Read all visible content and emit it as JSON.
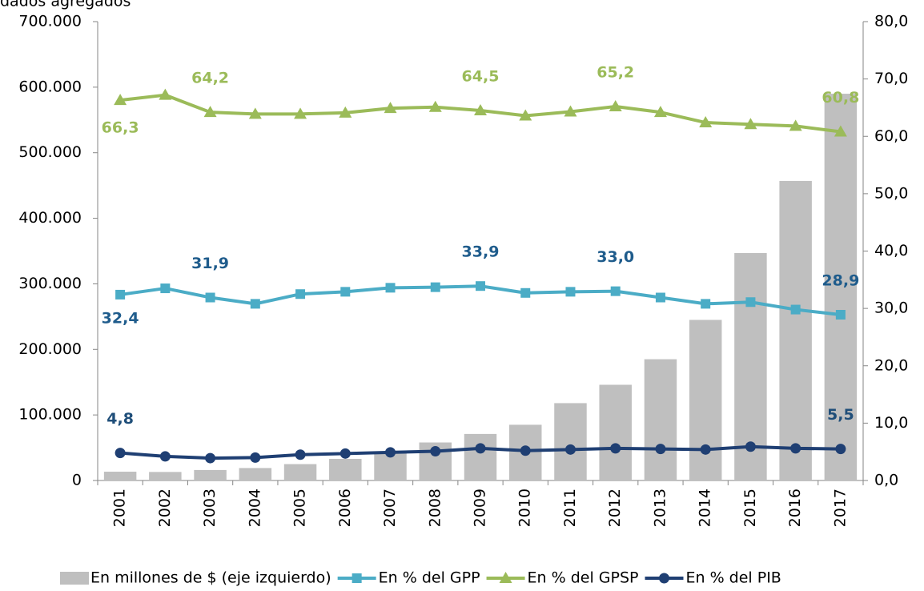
{
  "chart_data": {
    "type": "combo",
    "subtitle": "dados agregados",
    "categories": [
      "2001",
      "2002",
      "2003",
      "2004",
      "2005",
      "2006",
      "2007",
      "2008",
      "2009",
      "2010",
      "2011",
      "2012",
      "2013",
      "2014",
      "2015",
      "2016",
      "2017"
    ],
    "ylim": [
      0,
      700000
    ],
    "yticks": [
      0,
      {
        "value": 100000,
        "label": "100.000"
      },
      {
        "value": 200000,
        "label": "200.000"
      },
      {
        "value": 300000,
        "label": "300.000"
      },
      {
        "value": 400000,
        "label": "400.000"
      },
      {
        "value": 500000,
        "label": "500.000"
      },
      {
        "value": 600000,
        "label": "600.000"
      },
      {
        "value": 700000,
        "label": "700.000"
      }
    ],
    "y2lim": [
      0,
      80
    ],
    "y2ticks": [
      {
        "value": 0,
        "label": "0,0"
      },
      {
        "value": 10,
        "label": "10,0"
      },
      {
        "value": 20,
        "label": "20,0"
      },
      {
        "value": 30,
        "label": "30,0"
      },
      {
        "value": 40,
        "label": "40,0"
      },
      {
        "value": 50,
        "label": "50,0"
      },
      {
        "value": 60,
        "label": "60,0"
      },
      {
        "value": 70,
        "label": "70,0"
      },
      {
        "value": 80,
        "label": "80,0"
      }
    ],
    "legend": "bottom",
    "series": [
      {
        "name": "En millones de $ (eje izquierdo)",
        "type": "bar",
        "color": "#bfbfbf",
        "values": [
          13400,
          13000,
          16000,
          19000,
          25000,
          33000,
          42000,
          58000,
          71000,
          85000,
          118000,
          146000,
          185000,
          245000,
          347000,
          457000,
          590000
        ]
      },
      {
        "name": "En % del GPP",
        "type": "line",
        "marker": "square",
        "axis": "y2",
        "color": "#4bacc6",
        "label_color": "#1f5c8c",
        "values": [
          32.4,
          33.5,
          31.9,
          30.8,
          32.5,
          32.9,
          33.6,
          33.7,
          33.9,
          32.7,
          32.9,
          33.0,
          31.9,
          30.8,
          31.1,
          29.8,
          28.9
        ],
        "value_labels": [
          "32,4",
          null,
          "31,9",
          null,
          null,
          null,
          null,
          null,
          "33,9",
          null,
          null,
          "33,0",
          null,
          null,
          null,
          null,
          "28,9"
        ]
      },
      {
        "name": "En % del GPSP",
        "type": "line",
        "marker": "triangle",
        "axis": "y2",
        "color": "#9bbb59",
        "label_color": "#9bbb59",
        "values": [
          66.3,
          67.2,
          64.2,
          63.9,
          63.9,
          64.1,
          64.9,
          65.1,
          64.5,
          63.6,
          64.3,
          65.2,
          64.2,
          62.4,
          62.1,
          61.8,
          60.8
        ],
        "value_labels": [
          "66,3",
          null,
          "64,2",
          null,
          null,
          null,
          null,
          null,
          "64,5",
          null,
          null,
          "65,2",
          null,
          null,
          null,
          null,
          "60,8"
        ]
      },
      {
        "name": "En % del PIB",
        "type": "line",
        "marker": "circle",
        "axis": "y2",
        "color": "#1f3f73",
        "label_color": "#1f4e79",
        "values": [
          4.8,
          4.2,
          3.9,
          4.0,
          4.5,
          4.7,
          4.9,
          5.1,
          5.6,
          5.2,
          5.4,
          5.6,
          5.5,
          5.4,
          5.9,
          5.6,
          5.5
        ],
        "value_labels": [
          "4,8",
          null,
          null,
          null,
          null,
          null,
          null,
          null,
          null,
          null,
          null,
          null,
          null,
          null,
          null,
          null,
          "5,5"
        ]
      }
    ]
  }
}
